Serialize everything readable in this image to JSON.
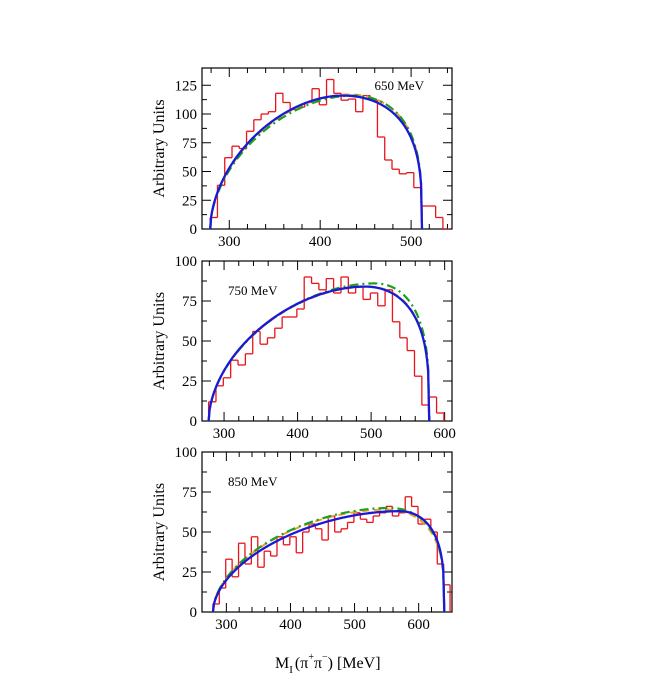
{
  "figure": {
    "xlabel_main": "M",
    "xlabel_sub": "I",
    "xlabel_open": "(π",
    "xlabel_sup1": "+",
    "xlabel_mid": "π",
    "xlabel_sup2": "−",
    "xlabel_close": ") [MeV]",
    "colors": {
      "histogram": "#e8141b",
      "blue": "#1a1ad6",
      "green": "#1f9e1f",
      "orange": "#f0a020",
      "axis": "#000000"
    }
  },
  "chart_data": [
    {
      "type": "line",
      "title": "",
      "annotation": "650 MeV",
      "ylabel": "Arbitrary Units",
      "xlabel": "",
      "xlim": [
        270,
        545
      ],
      "ylim": [
        0,
        140
      ],
      "xticks": [
        300,
        400,
        500
      ],
      "xtick_labels": [
        "300",
        "400",
        "500"
      ],
      "yticks": [
        0,
        25,
        50,
        75,
        100,
        125
      ],
      "ytick_labels": [
        "0",
        "25",
        "50",
        "75",
        "100",
        "125"
      ],
      "threshold": 279,
      "endpoint": 512,
      "histogram": {
        "name": "data",
        "bin_edges": [
          279,
          287,
          295,
          303,
          311,
          319,
          327,
          335,
          343,
          351,
          359,
          367,
          375,
          383,
          391,
          399,
          407,
          415,
          423,
          431,
          439,
          447,
          455,
          463,
          471,
          479,
          487,
          495,
          503,
          511,
          519,
          527,
          535,
          543
        ],
        "values": [
          10,
          38,
          62,
          72,
          70,
          85,
          95,
          100,
          102,
          118,
          110,
          104,
          106,
          110,
          122,
          108,
          130,
          118,
          112,
          113,
          102,
          116,
          112,
          80,
          60,
          52,
          48,
          49,
          36,
          20,
          20,
          10,
          0
        ]
      },
      "series": [
        {
          "name": "blue solid",
          "style": "solid",
          "peak_x": 425,
          "peak_y": 116
        },
        {
          "name": "green dash-dot",
          "style": "dash-dot",
          "peak_x": 436,
          "peak_y": 116
        },
        {
          "name": "orange dashed",
          "style": "dashed",
          "peak_x": 432,
          "peak_y": 117
        }
      ]
    },
    {
      "type": "line",
      "title": "",
      "annotation": "750 MeV",
      "ylabel": "Arbitrary Units",
      "xlabel": "",
      "xlim": [
        270,
        610
      ],
      "ylim": [
        0,
        100
      ],
      "xticks": [
        300,
        400,
        500,
        600
      ],
      "xtick_labels": [
        "300",
        "400",
        "500",
        "600"
      ],
      "yticks": [
        0,
        25,
        50,
        75,
        100
      ],
      "ytick_labels": [
        "0",
        "25",
        "50",
        "75",
        "100"
      ],
      "threshold": 279,
      "endpoint": 579,
      "histogram": {
        "name": "data",
        "bin_edges": [
          279,
          289,
          299,
          309,
          319,
          329,
          339,
          349,
          359,
          369,
          379,
          389,
          399,
          409,
          419,
          429,
          439,
          449,
          459,
          469,
          479,
          489,
          499,
          509,
          519,
          529,
          539,
          549,
          559,
          569,
          579,
          589,
          599
        ],
        "values": [
          12,
          22,
          27,
          38,
          35,
          42,
          56,
          48,
          52,
          58,
          65,
          65,
          70,
          90,
          86,
          82,
          89,
          80,
          90,
          80,
          84,
          76,
          80,
          72,
          82,
          62,
          52,
          44,
          28,
          10,
          15,
          5
        ]
      },
      "series": [
        {
          "name": "blue solid",
          "style": "solid",
          "peak_x": 492,
          "peak_y": 84
        },
        {
          "name": "green dash-dot",
          "style": "dash-dot",
          "peak_x": 505,
          "peak_y": 86
        },
        {
          "name": "orange dashed",
          "style": "dashed",
          "peak_x": 495,
          "peak_y": 84
        }
      ]
    },
    {
      "type": "line",
      "title": "",
      "annotation": "850 MeV",
      "ylabel": "Arbitrary Units",
      "xlabel": "M_I(π+π−) [MeV]",
      "xlim": [
        262,
        652
      ],
      "ylim": [
        0,
        100
      ],
      "xticks": [
        300,
        400,
        500,
        600
      ],
      "xtick_labels": [
        "300",
        "400",
        "500",
        "600"
      ],
      "yticks": [
        0,
        25,
        50,
        75,
        100
      ],
      "ytick_labels": [
        "0",
        "25",
        "50",
        "75",
        "100"
      ],
      "threshold": 279,
      "endpoint": 640,
      "histogram": {
        "name": "data",
        "bin_edges": [
          279,
          289,
          299,
          309,
          319,
          329,
          339,
          349,
          359,
          369,
          379,
          389,
          399,
          409,
          419,
          429,
          439,
          449,
          459,
          469,
          479,
          489,
          499,
          509,
          519,
          529,
          539,
          549,
          559,
          569,
          579,
          589,
          599,
          609,
          619,
          629,
          639,
          649
        ],
        "values": [
          5,
          15,
          33,
          22,
          43,
          30,
          47,
          28,
          38,
          35,
          47,
          42,
          47,
          37,
          50,
          55,
          52,
          45,
          60,
          50,
          52,
          56,
          62,
          58,
          56,
          60,
          62,
          66,
          60,
          62,
          72,
          66,
          55,
          58,
          50,
          30,
          17
        ]
      },
      "series": [
        {
          "name": "blue solid",
          "style": "solid",
          "peak_x": 570,
          "peak_y": 63
        },
        {
          "name": "green dash-dot",
          "style": "dash-dot",
          "peak_x": 555,
          "peak_y": 65
        },
        {
          "name": "orange dashed",
          "style": "dashed",
          "peak_x": 550,
          "peak_y": 64
        }
      ]
    }
  ]
}
